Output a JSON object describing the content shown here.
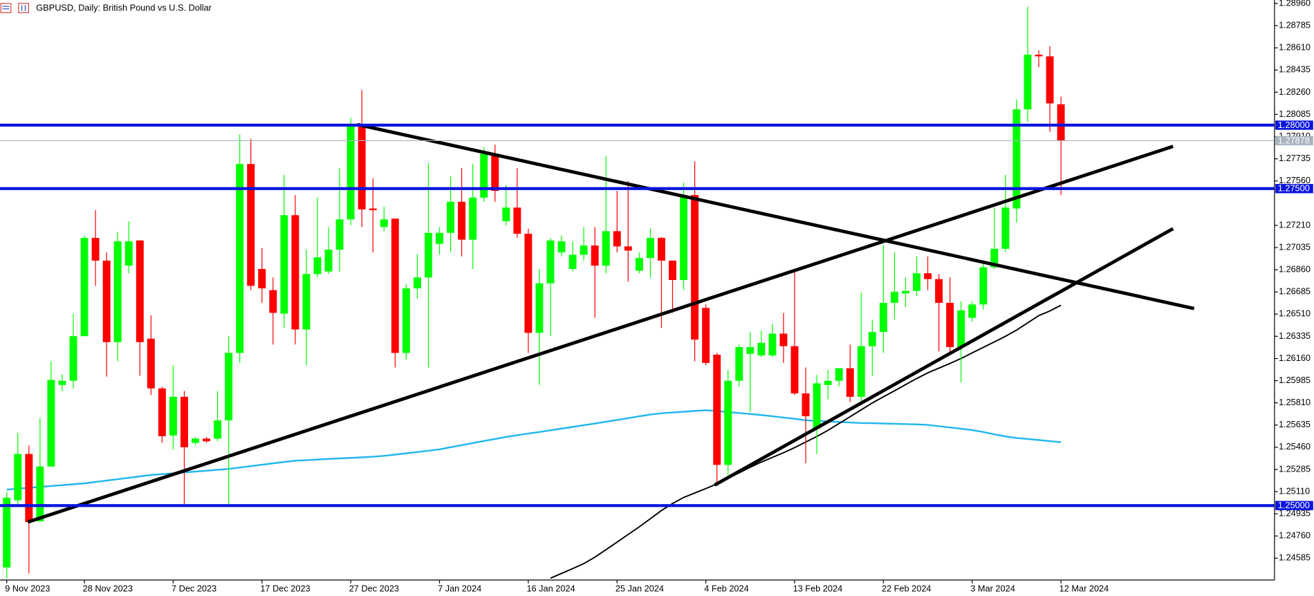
{
  "chart_data": {
    "type": "candlestick",
    "title": "GBPUSD, Daily:  British Pound vs U.S. Dollar",
    "categories": [
      "9 Nov 2023",
      null,
      null,
      null,
      null,
      null,
      null,
      "28 Nov 2023",
      null,
      null,
      null,
      null,
      null,
      null,
      null,
      "7 Dec 2023",
      null,
      null,
      null,
      null,
      null,
      null,
      null,
      "17 Dec 2023",
      null,
      null,
      null,
      null,
      null,
      null,
      null,
      "27 Dec 2023",
      null,
      null,
      null,
      null,
      null,
      null,
      null,
      "7 Jan 2024",
      null,
      null,
      null,
      null,
      null,
      null,
      null,
      "16 Jan 2024",
      null,
      null,
      null,
      null,
      null,
      null,
      null,
      "25 Jan 2024",
      null,
      null,
      null,
      null,
      null,
      null,
      null,
      "4 Feb 2024",
      null,
      null,
      null,
      null,
      null,
      null,
      null,
      "13 Feb 2024",
      null,
      null,
      null,
      null,
      null,
      null,
      null,
      "22 Feb 2024",
      null,
      null,
      null,
      null,
      null,
      null,
      null,
      "3 Mar 2024",
      null,
      null,
      null,
      null,
      null,
      null,
      null,
      "12 Mar 2024"
    ],
    "open": [
      1.24512,
      1.25042,
      1.25407,
      1.24876,
      1.25308,
      1.25951,
      1.25984,
      1.26336,
      1.27111,
      1.26932,
      1.26289,
      1.26892,
      1.27091,
      1.26316,
      1.25924,
      1.25553,
      1.25858,
      1.25494,
      1.25528,
      1.25528,
      1.25672,
      1.26204,
      1.27694,
      1.26866,
      1.26699,
      1.26514,
      1.2729,
      1.26389,
      1.26826,
      1.26846,
      1.27018,
      1.27257,
      1.28006,
      1.27343,
      1.27197,
      1.27263,
      1.26204,
      1.26713,
      1.26799,
      1.27064,
      1.27151,
      1.27396,
      1.27097,
      1.27429,
      1.27774,
      1.27243,
      1.2735,
      1.27144,
      1.26362,
      1.26753,
      1.26997,
      1.26866,
      1.26978,
      1.27051,
      1.26892,
      1.27164,
      1.27044,
      1.26852,
      1.26952,
      1.27111,
      1.26932,
      1.26779,
      1.27449,
      1.26559,
      1.2619,
      1.25321,
      1.25984,
      1.26197,
      1.26184,
      1.26184,
      1.26356,
      1.26257,
      1.25885,
      1.25606,
      1.25951,
      1.25984,
      1.26083,
      1.25858,
      1.26257,
      1.26369,
      1.26599,
      1.26673,
      1.26693,
      1.26832,
      1.26786,
      1.26599,
      1.2625,
      1.26481,
      1.26586,
      1.26879,
      1.27025,
      1.27343,
      1.28125,
      1.28556,
      1.28543,
      1.28165
    ],
    "high": [
      1.25109,
      1.25573,
      1.25474,
      1.25692,
      1.26138,
      1.26037,
      1.26514,
      1.27131,
      1.2733,
      1.26997,
      1.27157,
      1.27243,
      1.27091,
      1.265,
      1.25938,
      1.26106,
      1.25904,
      1.25541,
      1.25541,
      1.25904,
      1.26336,
      1.27926,
      1.27893,
      1.27031,
      1.26799,
      1.27608,
      1.27449,
      1.27018,
      1.27429,
      1.27197,
      1.27661,
      1.28059,
      1.28278,
      1.27581,
      1.27357,
      1.27263,
      1.26746,
      1.26984,
      1.27701,
      1.27197,
      1.27595,
      1.27661,
      1.27694,
      1.27827,
      1.27847,
      1.27528,
      1.27661,
      1.27184,
      1.26866,
      1.27111,
      1.27131,
      1.27084,
      1.27197,
      1.27197,
      1.27754,
      1.27482,
      1.27561,
      1.26997,
      1.27184,
      1.27117,
      1.26932,
      1.27548,
      1.27714,
      1.26586,
      1.26204,
      1.2607,
      1.2627,
      1.26369,
      1.26381,
      1.26435,
      1.2652,
      1.26852,
      1.26089,
      1.2603,
      1.2607,
      1.26083,
      1.2627,
      1.26679,
      1.26467,
      1.27054,
      1.26997,
      1.26799,
      1.26965,
      1.26965,
      1.26826,
      1.26799,
      1.26612,
      1.26612,
      1.26932,
      1.2735,
      1.27608,
      1.28205,
      1.28934,
      1.28589,
      1.28622,
      1.28225
    ],
    "low": [
      1.24426,
      1.25009,
      1.24465,
      1.2487,
      1.25308,
      1.25904,
      1.25924,
      1.26336,
      1.26733,
      1.26017,
      1.26138,
      1.26832,
      1.26024,
      1.25871,
      1.25494,
      1.25441,
      1.24996,
      1.25474,
      1.25494,
      1.25507,
      1.24996,
      1.26125,
      1.26699,
      1.26599,
      1.2627,
      1.26402,
      1.2627,
      1.26106,
      1.26799,
      1.26826,
      1.26846,
      1.2721,
      1.27197,
      1.26997,
      1.27164,
      1.26089,
      1.26151,
      1.26633,
      1.26089,
      1.26978,
      1.26997,
      1.26965,
      1.26866,
      1.27396,
      1.27396,
      1.2721,
      1.27111,
      1.26204,
      1.25951,
      1.26336,
      1.26965,
      1.26846,
      1.26932,
      1.26481,
      1.26832,
      1.26997,
      1.26766,
      1.26832,
      1.26799,
      1.26402,
      1.2652,
      1.26699,
      1.26138,
      1.26106,
      1.25162,
      1.25241,
      1.25938,
      1.25738,
      1.26171,
      1.26171,
      1.26125,
      1.25871,
      1.25334,
      1.25407,
      1.25838,
      1.25938,
      1.25818,
      1.25805,
      1.26024,
      1.26204,
      1.26467,
      1.26566,
      1.26653,
      1.26699,
      1.26217,
      1.26204,
      1.25971,
      1.26448,
      1.26546,
      1.26866,
      1.26997,
      1.2723,
      1.28026,
      1.28457,
      1.27946,
      1.27449
    ],
    "close": [
      1.25062,
      1.25407,
      1.2487,
      1.25308,
      1.25991,
      1.25984,
      1.26336,
      1.27111,
      1.26932,
      1.26289,
      1.27084,
      1.27084,
      1.26289,
      1.25924,
      1.25547,
      1.25858,
      1.2546,
      1.25528,
      1.25507,
      1.25672,
      1.26204,
      1.27694,
      1.26733,
      1.26713,
      1.2652,
      1.2729,
      1.26389,
      1.26826,
      1.26958,
      1.27018,
      1.27257,
      1.28006,
      1.27336,
      1.2733,
      1.27257,
      1.26204,
      1.26713,
      1.26799,
      1.27151,
      1.27151,
      1.27396,
      1.27097,
      1.27429,
      1.27774,
      1.27482,
      1.2735,
      1.27144,
      1.26362,
      1.26753,
      1.27091,
      1.27084,
      1.26978,
      1.27051,
      1.26892,
      1.27164,
      1.27044,
      1.27011,
      1.26952,
      1.27111,
      1.26932,
      1.26779,
      1.27449,
      1.26309,
      1.26125,
      1.25321,
      1.25984,
      1.2625,
      1.2625,
      1.26283,
      1.26356,
      1.26257,
      1.25885,
      1.25705,
      1.25964,
      1.25984,
      1.26083,
      1.25858,
      1.26257,
      1.26369,
      1.26599,
      1.26686,
      1.26693,
      1.26832,
      1.26786,
      1.26599,
      1.2625,
      1.2654,
      1.26586,
      1.26879,
      1.27025,
      1.2735,
      1.28125,
      1.28556,
      1.28543,
      1.28172,
      1.27878
    ],
    "up_color": "#00ff00",
    "down_color": "#ff0000",
    "moving_averages": [
      {
        "color": "#1fb6f0",
        "values": [
          1.25126,
          1.25133,
          1.2514,
          1.25147,
          1.25154,
          1.25161,
          1.25168,
          1.25175,
          1.25186,
          1.25197,
          1.25208,
          1.25219,
          1.2523,
          1.25241,
          1.25248,
          1.25254,
          1.25261,
          1.25268,
          1.25275,
          1.25282,
          1.25289,
          1.253,
          1.25311,
          1.25322,
          1.25333,
          1.25344,
          1.25354,
          1.25358,
          1.25363,
          1.25368,
          1.25372,
          1.25376,
          1.2538,
          1.25385,
          1.25392,
          1.25402,
          1.25412,
          1.25422,
          1.25433,
          1.25443,
          1.2546,
          1.25476,
          1.25493,
          1.25509,
          1.25525,
          1.25541,
          1.25555,
          1.25568,
          1.2558,
          1.25594,
          1.25607,
          1.2562,
          1.25634,
          1.25647,
          1.25661,
          1.25675,
          1.25689,
          1.25704,
          1.25718,
          1.25728,
          1.25734,
          1.2574,
          1.25746,
          1.25752,
          1.25745,
          1.25737,
          1.2573,
          1.25722,
          1.25714,
          1.25704,
          1.25694,
          1.25684,
          1.25673,
          1.25668,
          1.25664,
          1.25659,
          1.25655,
          1.25651,
          1.2565,
          1.25647,
          1.25645,
          1.25643,
          1.2564,
          1.25636,
          1.25626,
          1.25616,
          1.25606,
          1.25595,
          1.2558,
          1.25562,
          1.25545,
          1.25533,
          1.25525,
          1.25517,
          1.25508,
          1.255
        ]
      },
      {
        "color": "#000000",
        "values": [
          null,
          null,
          null,
          null,
          null,
          null,
          null,
          null,
          null,
          null,
          null,
          null,
          null,
          null,
          null,
          null,
          null,
          null,
          null,
          null,
          null,
          null,
          null,
          null,
          null,
          null,
          null,
          null,
          null,
          null,
          null,
          null,
          null,
          null,
          null,
          null,
          null,
          null,
          null,
          null,
          null,
          null,
          null,
          null,
          null,
          null,
          null,
          null,
          null,
          1.24427,
          1.24465,
          1.24503,
          1.24542,
          1.24593,
          1.24652,
          1.24712,
          1.24772,
          1.24832,
          1.24896,
          1.24961,
          1.25016,
          1.25064,
          1.25099,
          1.25134,
          1.25171,
          1.25215,
          1.25258,
          1.25302,
          1.25343,
          1.2538,
          1.25417,
          1.25457,
          1.25501,
          1.25545,
          1.25593,
          1.25647,
          1.25701,
          1.25755,
          1.25809,
          1.25858,
          1.25905,
          1.25954,
          1.26002,
          1.26047,
          1.26084,
          1.26121,
          1.2616,
          1.26204,
          1.26248,
          1.26291,
          1.26335,
          1.26384,
          1.26441,
          1.26498,
          1.26535,
          1.2658
        ]
      }
    ],
    "trendlines": [
      {
        "color": "#000000",
        "from": [
          31.6,
          1.28005
        ],
        "to": [
          107,
          1.26554
        ]
      },
      {
        "color": "#000000",
        "from": [
          1.9,
          1.2487
        ],
        "to": [
          105.1,
          1.27833
        ]
      },
      {
        "color": "#000000",
        "from": [
          63.8,
          1.25162
        ],
        "to": [
          105.1,
          1.27184
        ]
      }
    ],
    "levels": [
      {
        "value": 1.28,
        "label": "1.28000",
        "color": "#0a14e0"
      },
      {
        "value": 1.275,
        "label": "1.27500",
        "color": "#0a14e0"
      },
      {
        "value": 1.25,
        "label": "1.25000",
        "color": "#0a14e0"
      }
    ],
    "current_price": {
      "value": 1.27878,
      "label": "1.27878",
      "color": "#a8b3bf"
    },
    "ylim": [
      1.24413,
      1.28987
    ],
    "yticks": [
      {
        "value": 1.2896,
        "label": "1.28960"
      },
      {
        "value": 1.28785,
        "label": "1.28785"
      },
      {
        "value": 1.2861,
        "label": "1.28610"
      },
      {
        "value": 1.28435,
        "label": "1.28435"
      },
      {
        "value": 1.2826,
        "label": "1.28260"
      },
      {
        "value": 1.28085,
        "label": "1.28085"
      },
      {
        "value": 1.2791,
        "label": "1.27910"
      },
      {
        "value": 1.27735,
        "label": "1.27735"
      },
      {
        "value": 1.2756,
        "label": "1.27560"
      },
      {
        "value": 1.2721,
        "label": "1.27210"
      },
      {
        "value": 1.27035,
        "label": "1.27035"
      },
      {
        "value": 1.2686,
        "label": "1.26860"
      },
      {
        "value": 1.26685,
        "label": "1.26685"
      },
      {
        "value": 1.2651,
        "label": "1.26510"
      },
      {
        "value": 1.26335,
        "label": "1.26335"
      },
      {
        "value": 1.2616,
        "label": "1.26160"
      },
      {
        "value": 1.25985,
        "label": "1.25985"
      },
      {
        "value": 1.2581,
        "label": "1.25810"
      },
      {
        "value": 1.25635,
        "label": "1.25635"
      },
      {
        "value": 1.2546,
        "label": "1.25460"
      },
      {
        "value": 1.25285,
        "label": "1.25285"
      },
      {
        "value": 1.2511,
        "label": "1.25110"
      },
      {
        "value": 1.24935,
        "label": "1.24935"
      },
      {
        "value": 1.2476,
        "label": "1.24760"
      },
      {
        "value": 1.24585,
        "label": "1.24585"
      }
    ],
    "grid": false
  }
}
